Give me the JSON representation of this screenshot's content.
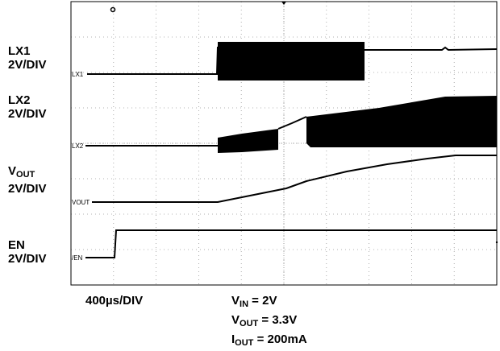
{
  "chart_data": {
    "type": "line",
    "title": "",
    "time_scale": "400µs/DIV",
    "channels": [
      {
        "name": "LX1",
        "scale": "2V/DIV",
        "marker": "LX1"
      },
      {
        "name": "LX2",
        "scale": "2V/DIV",
        "marker": "LX2"
      },
      {
        "name": "VOUT",
        "name_main": "V",
        "name_sub": "OUT",
        "scale": "2V/DIV",
        "marker": "VOUT"
      },
      {
        "name": "EN",
        "scale": "2V/DIV",
        "marker": "/EN"
      }
    ],
    "conditions": [
      {
        "main": "V",
        "sub": "IN",
        "value": " = 2V"
      },
      {
        "main": "V",
        "sub": "OUT",
        "value": " = 3.3V"
      },
      {
        "main": "I",
        "sub": "OUT",
        "value": " = 200mA"
      }
    ],
    "grid": {
      "x_divisions": 10,
      "y_divisions": 8,
      "style": "dotted"
    }
  }
}
